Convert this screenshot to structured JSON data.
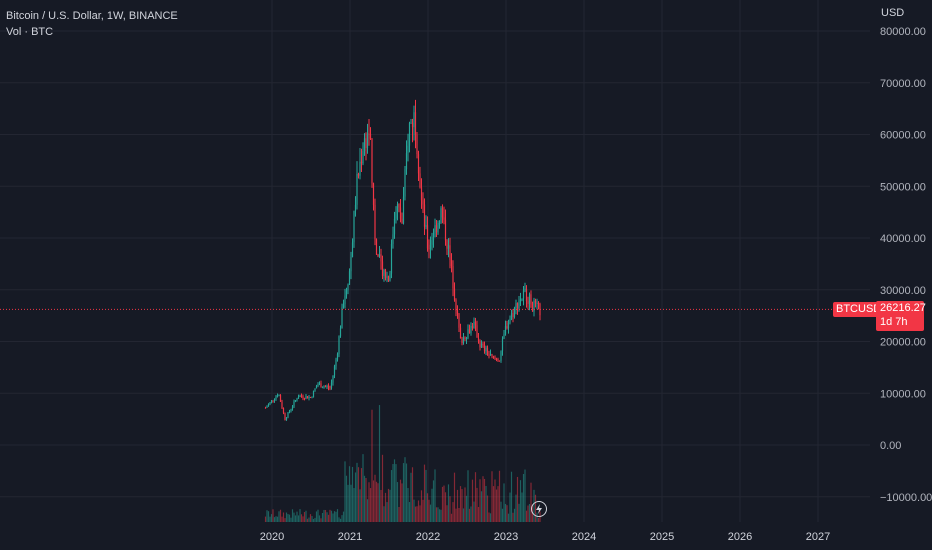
{
  "legend": {
    "title": "Bitcoin / U.S. Dollar, 1W, BINANCE",
    "volume_label": "Vol · BTC"
  },
  "currency": "USD",
  "price_tag": {
    "symbol": "BTCUSD",
    "value": "26216.27",
    "countdown": "1d 7h"
  },
  "colors": {
    "background": "#161a25",
    "up": "#26a69a",
    "down": "#f23645",
    "grid": "#232632",
    "price_line": "#f23645"
  },
  "chart_data": {
    "type": "candlestick",
    "y_axis_ticks": [
      "80000.00",
      "70000.00",
      "60000.00",
      "50000.00",
      "40000.00",
      "30000.00",
      "20000.00",
      "10000.00",
      "0.00",
      "−10000.00"
    ],
    "x_axis_ticks": [
      "2020",
      "2021",
      "2022",
      "2023",
      "2024",
      "2025",
      "2026",
      "2027"
    ],
    "ylim": [
      -13000,
      82000
    ],
    "last_price": 26216.27,
    "price_anchors": [
      {
        "date": "2019-12",
        "price": 7200
      },
      {
        "date": "2020-02",
        "price": 10000
      },
      {
        "date": "2020-03",
        "price": 5000
      },
      {
        "date": "2020-05",
        "price": 9500
      },
      {
        "date": "2020-07",
        "price": 9200
      },
      {
        "date": "2020-08",
        "price": 11800
      },
      {
        "date": "2020-10",
        "price": 11000
      },
      {
        "date": "2020-11",
        "price": 17500
      },
      {
        "date": "2020-12",
        "price": 28000
      },
      {
        "date": "2021-01",
        "price": 34000
      },
      {
        "date": "2021-02",
        "price": 50000
      },
      {
        "date": "2021-03",
        "price": 58000
      },
      {
        "date": "2021-04",
        "price": 61000
      },
      {
        "date": "2021-05",
        "price": 37000
      },
      {
        "date": "2021-06",
        "price": 34000
      },
      {
        "date": "2021-07",
        "price": 32000
      },
      {
        "date": "2021-08",
        "price": 47000
      },
      {
        "date": "2021-09",
        "price": 43000
      },
      {
        "date": "2021-10",
        "price": 61000
      },
      {
        "date": "2021-11",
        "price": 64000
      },
      {
        "date": "2021-12",
        "price": 47000
      },
      {
        "date": "2022-01",
        "price": 38000
      },
      {
        "date": "2022-03",
        "price": 45000
      },
      {
        "date": "2022-04",
        "price": 39000
      },
      {
        "date": "2022-05",
        "price": 30000
      },
      {
        "date": "2022-06",
        "price": 20000
      },
      {
        "date": "2022-08",
        "price": 23500
      },
      {
        "date": "2022-09",
        "price": 19500
      },
      {
        "date": "2022-11",
        "price": 16500
      },
      {
        "date": "2022-12",
        "price": 16800
      },
      {
        "date": "2023-01",
        "price": 23000
      },
      {
        "date": "2023-03",
        "price": 28000
      },
      {
        "date": "2023-04",
        "price": 29500
      },
      {
        "date": "2023-05",
        "price": 27000
      },
      {
        "date": "2023-06",
        "price": 26216
      }
    ],
    "xlabel": "",
    "ylabel": ""
  }
}
